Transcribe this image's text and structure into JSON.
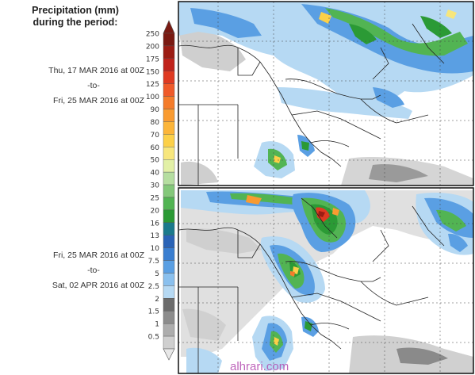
{
  "title": {
    "line1": "Precipitation (mm)",
    "line2": "during the period:"
  },
  "periods": [
    {
      "start": "Thu, 17 MAR 2016 at 00Z",
      "separator": "-to-",
      "end": "Fri, 25 MAR 2016 at 00Z"
    },
    {
      "start": "Fri, 25 MAR 2016 at 00Z",
      "separator": "-to-",
      "end": "Sat, 02 APR 2016 at 00Z"
    }
  ],
  "legend": {
    "labels": [
      "250",
      "200",
      "175",
      "150",
      "125",
      "100",
      "90",
      "80",
      "70",
      "60",
      "50",
      "40",
      "30",
      "25",
      "20",
      "16",
      "13",
      "10",
      "7.5",
      "5",
      "2.5",
      "2",
      "1.5",
      "1",
      "0.5"
    ],
    "colors": [
      "#7a1a12",
      "#9c1d14",
      "#c0231b",
      "#df3a22",
      "#ef5a2a",
      "#f47c2b",
      "#f99b31",
      "#fcb539",
      "#fcd048",
      "#f7e67c",
      "#e2f0a6",
      "#b5dea0",
      "#84c87a",
      "#52b453",
      "#2b9a35",
      "#1b7a8c",
      "#2a63b6",
      "#3a7ed0",
      "#5a9fe3",
      "#8ac0ee",
      "#b6d9f3",
      "#6b6b6b",
      "#8c8c8c",
      "#adadad",
      "#cfcfcf"
    ]
  },
  "watermark": "alhrari.com",
  "colors": {
    "map_land": "#ffffff",
    "light_blue": "#b6d9f3",
    "mid_blue": "#5a9fe3",
    "green": "#2b9a35",
    "heavy": "#df3a22",
    "grey_light": "#d9d9d9",
    "grey_dark": "#8c8c8c"
  }
}
